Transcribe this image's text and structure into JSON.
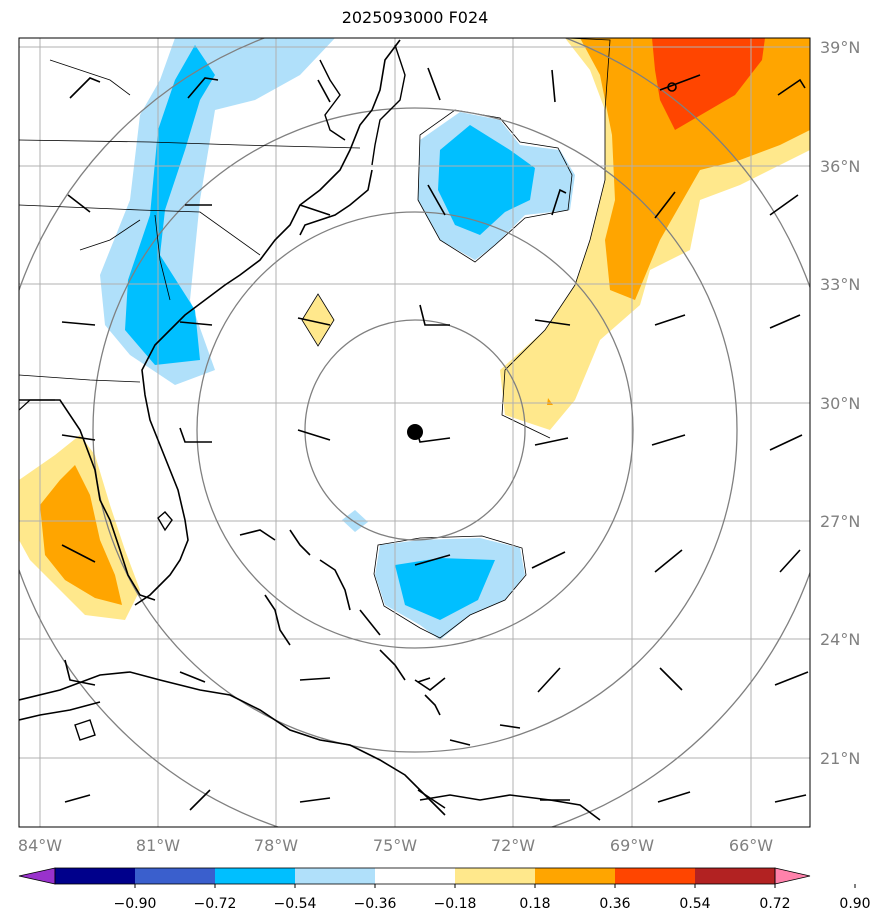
{
  "title": "2025093000 F024",
  "map": {
    "lon_labels": [
      "84°W",
      "81°W",
      "78°W",
      "75°W",
      "72°W",
      "69°W",
      "66°W"
    ],
    "lat_labels": [
      "39°N",
      "36°N",
      "33°N",
      "30°N",
      "27°N",
      "24°N",
      "21°N"
    ],
    "center_marker": "storm-center-dot"
  },
  "colorbar": {
    "ticks": [
      "−0.90",
      "−0.72",
      "−0.54",
      "−0.36",
      "−0.18",
      "0.18",
      "0.36",
      "0.54",
      "0.72",
      "0.90"
    ],
    "colors": [
      "#9932cc",
      "#00008b",
      "#3a5fcd",
      "#00bfff",
      "#b0e0fa",
      "#ffffff",
      "#ffe88c",
      "#ffa500",
      "#ff4500",
      "#b22222",
      "#ff82ab"
    ]
  },
  "colors": {
    "grid": "#b0b0b0",
    "range_rings": "#808080",
    "coast": "#000000"
  }
}
